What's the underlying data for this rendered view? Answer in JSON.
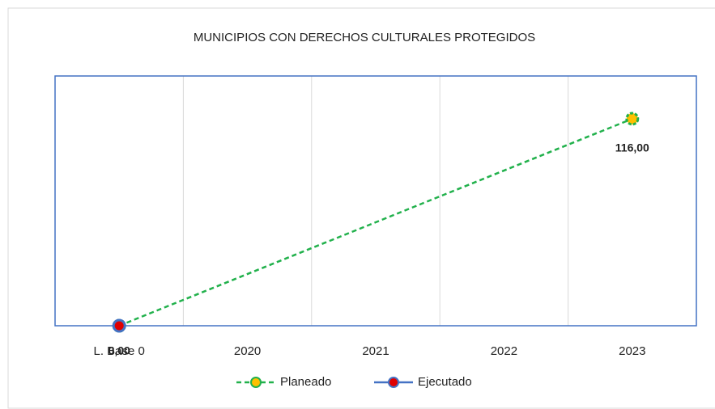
{
  "chart_data": {
    "type": "line",
    "title": "MUNICIPIOS CON DERECHOS CULTURALES PROTEGIDOS",
    "categories": [
      "L. Base 0",
      "2020",
      "2021",
      "2022",
      "2023"
    ],
    "series": [
      {
        "name": "Planeado",
        "color": "#22b14c",
        "marker_color": "#ffc000",
        "dashed": true,
        "values": [
          0,
          null,
          null,
          null,
          116
        ],
        "value_labels": [
          null,
          null,
          null,
          null,
          "116,00"
        ]
      },
      {
        "name": "Ejecutado",
        "color": "#4472c4",
        "marker_color": "#e00000",
        "dashed": false,
        "values": [
          0,
          null,
          null,
          null,
          null
        ],
        "value_labels": [
          "0,00",
          null,
          null,
          null,
          null
        ]
      }
    ],
    "ylim": [
      0,
      140
    ],
    "connect_gaps": true,
    "grid": true,
    "legend": "bottom"
  }
}
